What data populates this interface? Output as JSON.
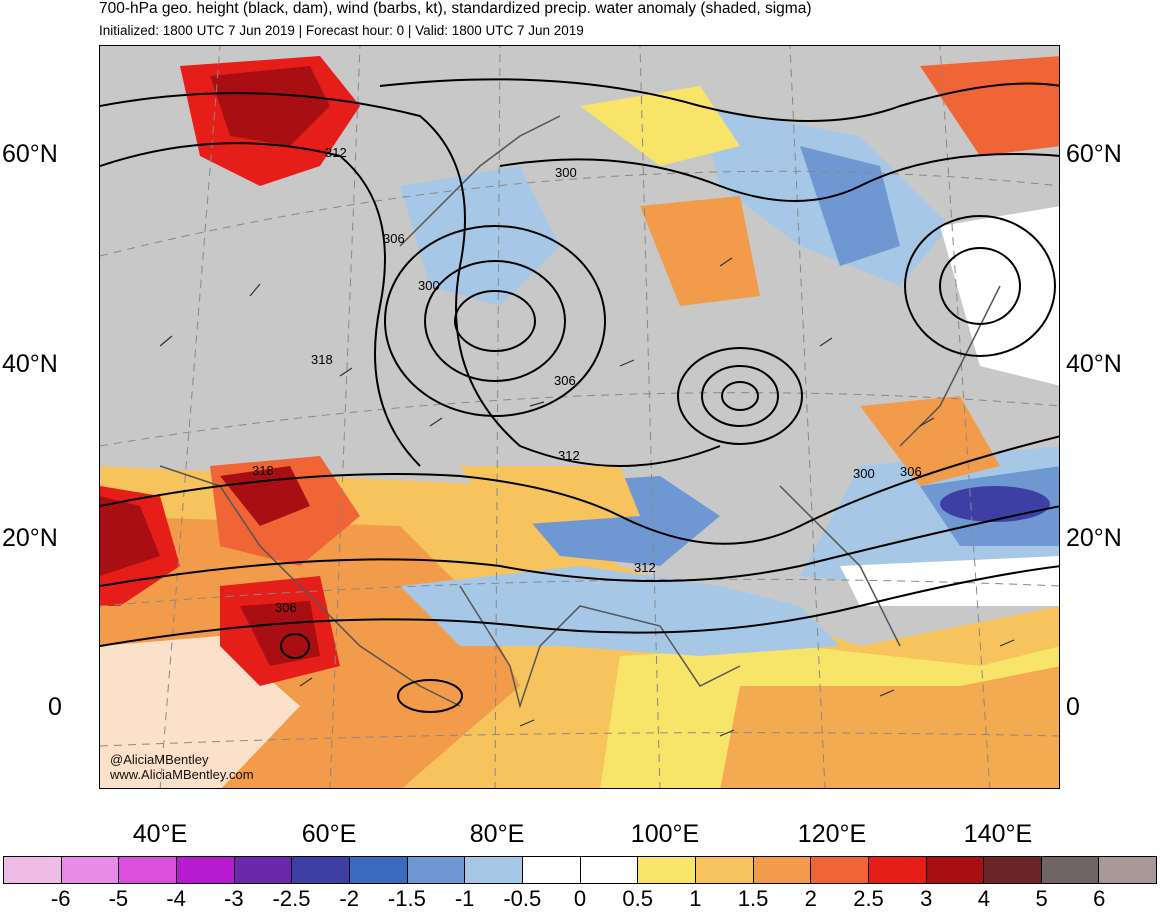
{
  "header": {
    "title": "700-hPa geo. height (black, dam), wind (barbs, kt), standardized precip. water anomaly (shaded, sigma)",
    "subtitle": "Initialized: 1800 UTC 7 Jun 2019 | Forecast hour: 0 | Valid: 1800 UTC 7 Jun 2019"
  },
  "map": {
    "lat_labels_left": [
      "60°N",
      "40°N",
      "20°N",
      "0"
    ],
    "lat_labels_right": [
      "60°N",
      "40°N",
      "20°N",
      "0"
    ],
    "lon_labels": [
      "40°E",
      "60°E",
      "80°E",
      "100°E",
      "120°E",
      "140°E"
    ],
    "contour_labels": [
      "312",
      "306",
      "300",
      "318",
      "300",
      "306",
      "312",
      "318",
      "312",
      "306",
      "300",
      "306"
    ],
    "credit": [
      "@AliciaMBentley",
      "www.AliciaMBentley.com"
    ]
  },
  "colorbar": {
    "colors": [
      "#eebbe6",
      "#e68be6",
      "#da4fde",
      "#b61bd2",
      "#6c28ad",
      "#3d3fa5",
      "#3b6bc0",
      "#6f98d3",
      "#a6c8e6",
      "#ffffff",
      "#ffffff",
      "#f9e46a",
      "#f6c35d",
      "#f29b4a",
      "#ef6536",
      "#e61e1a",
      "#a90f12",
      "#6b2528",
      "#706565",
      "#a89898"
    ],
    "labels": [
      "-6",
      "-5",
      "-4",
      "-3",
      "-2.5",
      "-2",
      "-1.5",
      "-1",
      "-0.5",
      "0",
      "0.5",
      "1",
      "1.5",
      "2",
      "2.5",
      "3",
      "4",
      "5",
      "6"
    ]
  }
}
